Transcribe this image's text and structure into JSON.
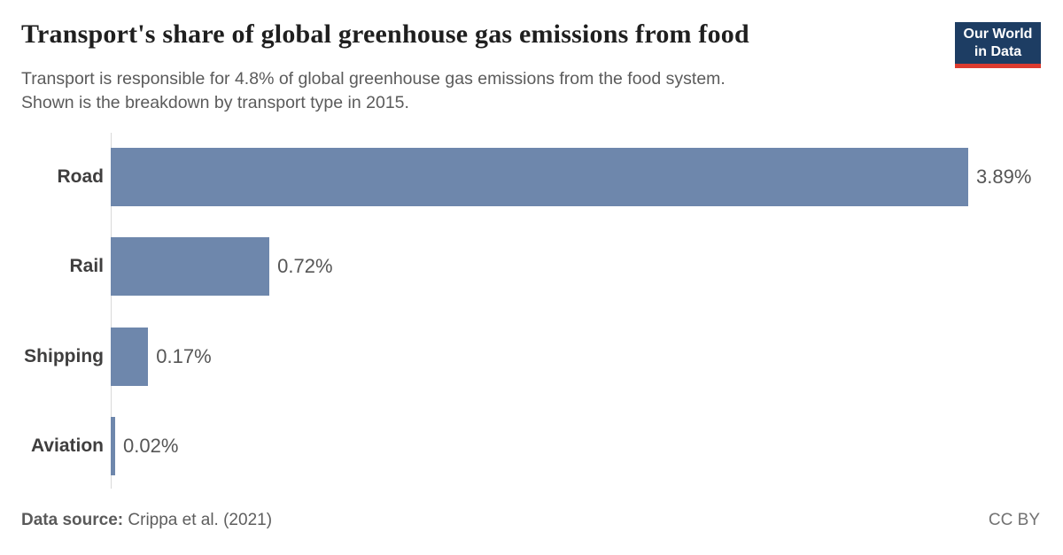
{
  "header": {
    "title": "Transport's share of global greenhouse gas emissions from food",
    "subtitle_line1": "Transport is responsible for 4.8% of global greenhouse gas emissions from the food system.",
    "subtitle_line2": "Shown is the breakdown by transport type in 2015.",
    "logo": {
      "line1": "Our World",
      "line2": "in Data",
      "bg_color": "#1d3d63",
      "accent_color": "#dc3b2f"
    }
  },
  "chart_data": {
    "type": "bar",
    "orientation": "horizontal",
    "title": "Transport's share of global greenhouse gas emissions from food",
    "categories": [
      "Road",
      "Rail",
      "Shipping",
      "Aviation"
    ],
    "values": [
      3.89,
      0.72,
      0.17,
      0.02
    ],
    "value_labels": [
      "3.89%",
      "0.72%",
      "0.17%",
      "0.02%"
    ],
    "unit": "%",
    "year": "2015",
    "bar_color": "#6e87ac",
    "xlim": [
      0,
      3.89
    ],
    "grid": false,
    "legend": "none"
  },
  "footer": {
    "source_label": "Data source:",
    "source_value": "Crippa et al. (2021)",
    "license": "CC BY"
  }
}
